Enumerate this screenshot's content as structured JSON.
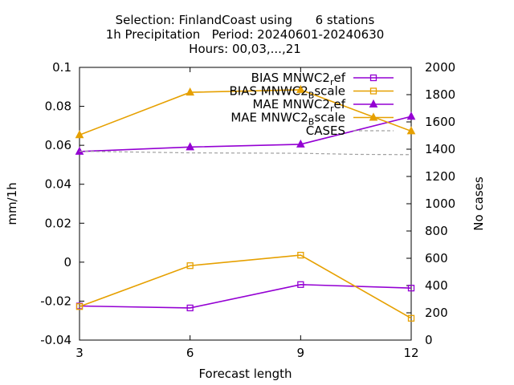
{
  "chart_data": {
    "type": "line",
    "title": [
      "Selection: FinlandCoast using      6 stations",
      "1h Precipitation   Period: 20240601-20240630",
      "Hours: 00,03,...,21"
    ],
    "xlabel": "Forecast length",
    "ylabel": "mm/1h",
    "y2label": "No cases",
    "x_ticks": [
      "3",
      "6",
      "9",
      "12"
    ],
    "y_ticks": [
      "-0.04",
      "-0.02",
      "0",
      "0.02",
      "0.04",
      "0.06",
      "0.08",
      "0.1"
    ],
    "y2_ticks": [
      "0",
      "200",
      "400",
      "600",
      "800",
      "1000",
      "1200",
      "1400",
      "1600",
      "1800",
      "2000"
    ],
    "xlim": [
      3,
      12
    ],
    "ylim": [
      -0.04,
      0.1
    ],
    "y2lim": [
      0,
      2000
    ],
    "grid": false,
    "legend_position": "top-right",
    "series": [
      {
        "name": "BIAS MNWC2_ref",
        "legend_text": "BIAS MNWC2",
        "legend_sub": "r",
        "legend_tail": "ef",
        "sub_style": "subscript",
        "axis": "y",
        "color": "#9400d3",
        "marker": "square-open",
        "x": [
          3,
          6,
          9,
          12
        ],
        "values": [
          -0.0225,
          -0.0235,
          -0.0115,
          -0.0133
        ]
      },
      {
        "name": "BIAS MNWC2_Bscale",
        "legend_text": "BIAS MNWC2",
        "legend_sub": "B",
        "legend_tail": "scale",
        "sub_style": "subscript",
        "axis": "y",
        "color": "#e6a000",
        "marker": "square-open",
        "x": [
          3,
          6,
          9,
          12
        ],
        "values": [
          -0.0228,
          -0.0018,
          0.0036,
          -0.0288
        ]
      },
      {
        "name": "MAE MNWC2_ref",
        "legend_text": "MAE MNWC2",
        "legend_sub": "r",
        "legend_tail": "ef",
        "sub_style": "subscript",
        "axis": "y",
        "color": "#9400d3",
        "marker": "triangle-filled",
        "x": [
          3,
          6,
          9,
          12
        ],
        "values": [
          0.0568,
          0.0591,
          0.0605,
          0.0748
        ]
      },
      {
        "name": "MAE MNWC2_Bscale",
        "legend_text": "MAE MNWC2",
        "legend_sub": "B",
        "legend_tail": "scale",
        "sub_style": "subscript",
        "axis": "y",
        "color": "#e6a000",
        "marker": "triangle-filled",
        "x": [
          3,
          6,
          9,
          12
        ],
        "values": [
          0.0653,
          0.0872,
          0.0885,
          0.0673
        ]
      },
      {
        "name": "CASES",
        "legend_text": "CASES",
        "legend_sub": "",
        "legend_tail": "",
        "axis": "y2",
        "color": "#a0a0a0",
        "marker": "none",
        "dash": true,
        "x": [
          3,
          6,
          9,
          10.5,
          12
        ],
        "values": [
          1385,
          1373,
          1370,
          1362,
          1360
        ]
      }
    ]
  }
}
